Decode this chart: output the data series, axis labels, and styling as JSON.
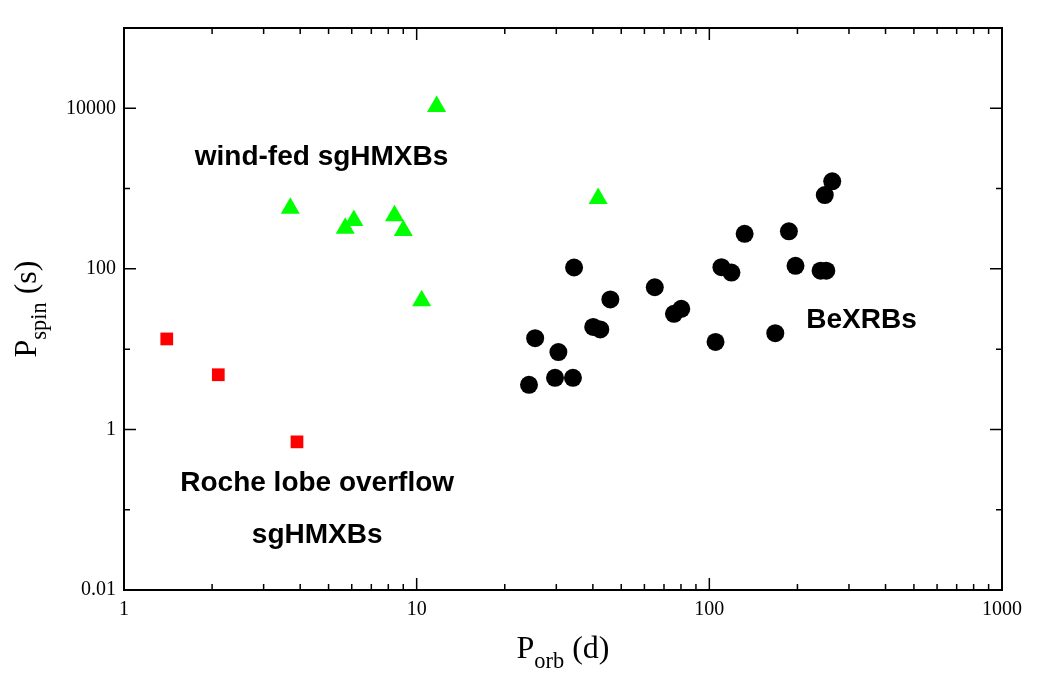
{
  "chart_data": {
    "type": "scatter",
    "xlabel": "P$_{orb}$ (d)",
    "ylabel": "P$_{spin}$ (s)",
    "log": "xy",
    "grid": false,
    "legend": false,
    "xlim": [
      1,
      1000
    ],
    "ylim": [
      0.01,
      100000
    ],
    "xticks": [
      1,
      {
        "value": 2,
        "label": null
      },
      {
        "value": 3,
        "label": null
      },
      {
        "value": 4,
        "label": null
      },
      {
        "value": 5,
        "label": null
      },
      {
        "value": 6,
        "label": null
      },
      {
        "value": 7,
        "label": null
      },
      {
        "value": 8,
        "label": null
      },
      {
        "value": 9,
        "label": null
      },
      10,
      {
        "value": 20,
        "label": null
      },
      {
        "value": 30,
        "label": null
      },
      {
        "value": 40,
        "label": null
      },
      {
        "value": 50,
        "label": null
      },
      {
        "value": 60,
        "label": null
      },
      {
        "value": 70,
        "label": null
      },
      {
        "value": 80,
        "label": null
      },
      {
        "value": 90,
        "label": null
      },
      100,
      {
        "value": 200,
        "label": null
      },
      {
        "value": 300,
        "label": null
      },
      {
        "value": 400,
        "label": null
      },
      {
        "value": 500,
        "label": null
      },
      {
        "value": 600,
        "label": null
      },
      {
        "value": 700,
        "label": null
      },
      {
        "value": 800,
        "label": null
      },
      {
        "value": 900,
        "label": null
      },
      1000
    ],
    "yticks": [
      0.01,
      {
        "value": 0.1,
        "label": null
      },
      1,
      {
        "value": 10,
        "label": null
      },
      100,
      {
        "value": 1000,
        "label": null
      },
      10000,
      {
        "value": 100000,
        "label": null
      }
    ],
    "series": [
      {
        "color": "#ff0000",
        "marker": "square",
        "x": [
          1.4,
          2.1,
          3.9
        ],
        "values": [
          13.4,
          4.8,
          0.7
        ]
      },
      {
        "color": "#00ff00",
        "marker": "triangle",
        "x": [
          11.7,
          3.7,
          5.7,
          6.1,
          8.4,
          9.0,
          10.4,
          41.7
        ],
        "values": [
          10500,
          570,
          320,
          400,
          460,
          300,
          40,
          750
        ]
      },
      {
        "color": "#000000",
        "marker": "circle",
        "x": [
          24.2,
          25.4,
          30.5,
          29.7,
          34.2,
          34.5,
          40.1,
          42.4,
          45.9,
          65.1,
          75.7,
          80.2,
          105,
          110,
          119,
          132,
          168,
          187,
          197,
          240,
          251,
          248,
          263
        ],
        "values": [
          3.6,
          13.7,
          9.2,
          4.4,
          4.4,
          104,
          18.9,
          17.6,
          41.6,
          59,
          27.5,
          31.8,
          12.3,
          105,
          90,
          273,
          15.8,
          293,
          109,
          95,
          95,
          829,
          1230
        ]
      }
    ],
    "annotations": [
      "wind-fed sgHMXBs",
      "Roche lobe overflow\nsgHMXBs",
      "BeXRBs"
    ]
  }
}
